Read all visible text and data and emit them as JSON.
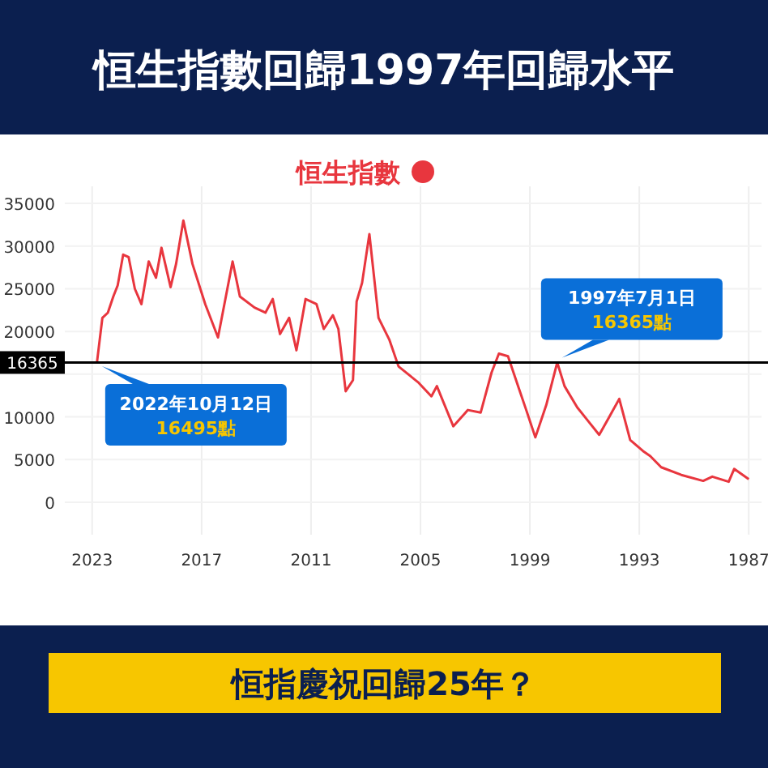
{
  "chart_data": {
    "type": "line",
    "title": "恒生指數回歸1997年回歸水平",
    "subtitle": "恒指慶祝回歸25年？",
    "legend": "top",
    "grid": true,
    "marker": "none",
    "xlim": [
      2024.5,
      1986.3
    ],
    "xticks": [
      2023,
      2017,
      2011,
      2005,
      1999,
      1993,
      1987
    ],
    "ylim": [
      -3800,
      37000
    ],
    "yticks": [
      0,
      5000,
      10000,
      {
        "value": 15000,
        "label": null
      },
      20000,
      25000,
      30000,
      35000
    ],
    "ref_lines": [
      {
        "axis": "y",
        "value": 16365,
        "label": "16365",
        "color": "#000000"
      }
    ],
    "annotations": [
      {
        "text": "2022年10月12日\n16495點",
        "x": 2022.73,
        "y": 16495
      },
      {
        "text": "1997年7月1日\n16365點",
        "x": 1997.5,
        "y": 16365
      }
    ],
    "series": [
      {
        "name": "恒生指數",
        "color": "#e8363e",
        "x": [
          2022.73,
          2022.44,
          2022.14,
          2021.84,
          2021.6,
          2021.3,
          2021.0,
          2020.66,
          2020.3,
          2019.9,
          2019.5,
          2019.2,
          2018.7,
          2018.4,
          2018.0,
          2017.5,
          2016.8,
          2016.1,
          2015.3,
          2014.9,
          2014.1,
          2013.5,
          2013.1,
          2012.7,
          2012.2,
          2011.8,
          2011.3,
          2010.7,
          2010.3,
          2009.8,
          2009.5,
          2009.1,
          2008.7,
          2008.5,
          2008.2,
          2007.8,
          2007.3,
          2006.7,
          2006.2,
          2005.1,
          2004.4,
          2004.1,
          2003.2,
          2002.4,
          2001.7,
          2001.1,
          2000.7,
          2000.2,
          1999.6,
          1999.2,
          1998.7,
          1998.1,
          1997.5,
          1997.1,
          1996.4,
          1995.8,
          1995.2,
          1994.7,
          1994.1,
          1993.5,
          1992.8,
          1992.4,
          1991.8,
          1990.7,
          1989.5,
          1989.0,
          1988.1,
          1987.8,
          1987.0
        ],
        "values": [
          16495,
          21600,
          22200,
          24100,
          25400,
          29000,
          28700,
          25000,
          23200,
          28200,
          26300,
          29800,
          25200,
          27900,
          33000,
          27900,
          23200,
          19300,
          28200,
          24100,
          22800,
          22200,
          23800,
          19700,
          21600,
          17800,
          23800,
          23200,
          20300,
          21900,
          20300,
          13000,
          14300,
          23500,
          25700,
          31400,
          21600,
          19000,
          15900,
          14000,
          12400,
          13600,
          8900,
          10800,
          10500,
          15200,
          17400,
          17100,
          13300,
          10800,
          7600,
          11400,
          16365,
          13600,
          11100,
          9500,
          7900,
          9800,
          12100,
          7300,
          6000,
          5400,
          4100,
          3200,
          2500,
          3000,
          2400,
          3900,
          2700
        ]
      }
    ]
  }
}
